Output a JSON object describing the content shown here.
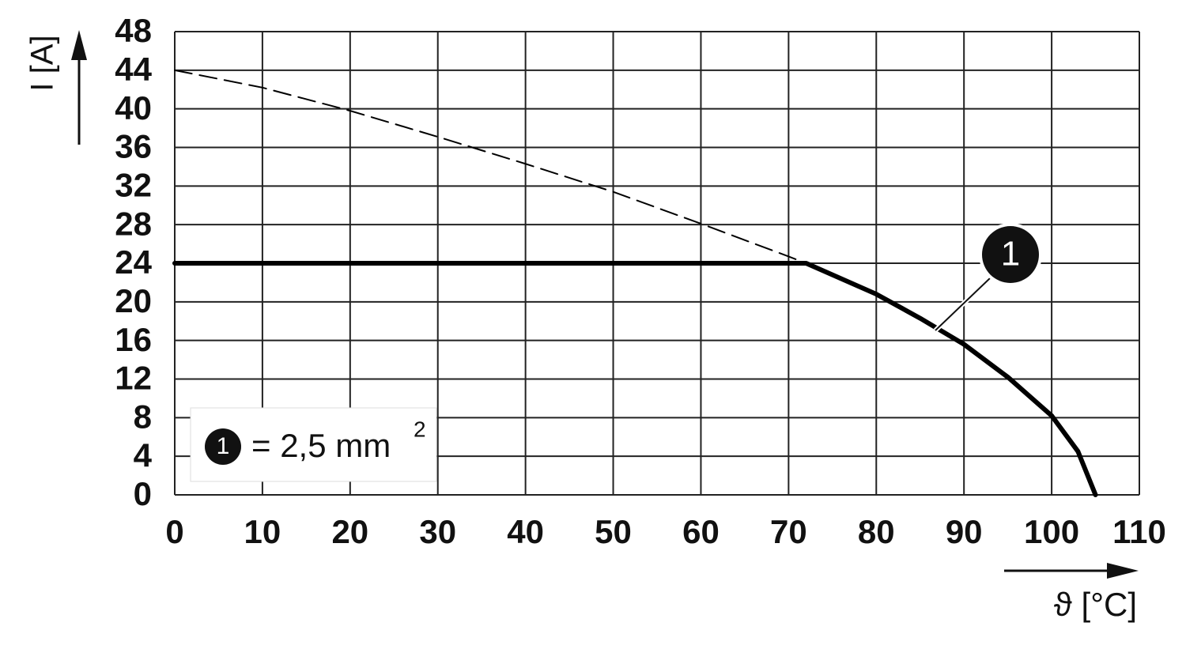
{
  "chart_data": {
    "type": "line",
    "y_label": "I [A]",
    "x_label": "ϑ [°C]",
    "xlim": [
      0,
      110
    ],
    "ylim": [
      0,
      48
    ],
    "xticks": [
      0,
      10,
      20,
      30,
      40,
      50,
      60,
      70,
      80,
      90,
      100,
      110
    ],
    "yticks": [
      0,
      4,
      8,
      12,
      16,
      20,
      24,
      28,
      32,
      36,
      40,
      44,
      48
    ],
    "grid": true,
    "series": [
      {
        "color": "#000000",
        "style": "solid",
        "x": [
          0,
          72,
          80,
          85,
          90,
          95,
          100,
          103,
          105
        ],
        "values": [
          24,
          24,
          20.8,
          18.3,
          15.6,
          12.2,
          8.2,
          4.5,
          0
        ]
      },
      {
        "color": "#000000",
        "style": "dashed",
        "x": [
          0,
          10,
          20,
          30,
          40,
          50,
          60,
          70,
          72
        ],
        "values": [
          44,
          42.2,
          39.8,
          37.1,
          34.3,
          31.4,
          28.1,
          24.7,
          24
        ]
      }
    ],
    "annotation": {
      "label": "1"
    },
    "legend": {
      "marker": "1",
      "text": "= 2,5 mm",
      "superscript": "2"
    }
  }
}
